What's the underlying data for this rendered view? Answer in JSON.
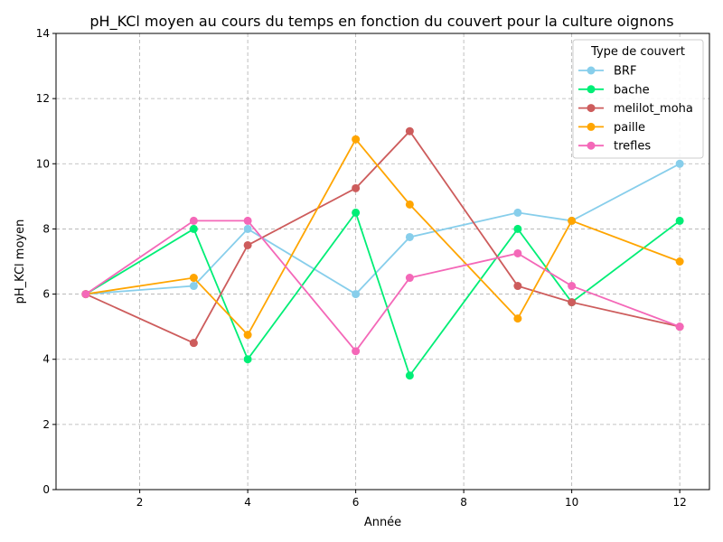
{
  "chart_data": {
    "type": "line",
    "title": "pH_KCl moyen au cours du temps en fonction du couvert pour la culture oignons",
    "xlabel": "Année",
    "ylabel": "pH_KCl moyen",
    "xlim": [
      0.45,
      12.55
    ],
    "ylim": [
      0,
      14
    ],
    "xticks": [
      2,
      4,
      6,
      8,
      10,
      12
    ],
    "yticks": [
      0,
      2,
      4,
      6,
      8,
      10,
      12,
      14
    ],
    "grid": true,
    "legend_title": "Type de couvert",
    "legend_position": "top-right",
    "series": [
      {
        "name": "BRF",
        "color": "#87ceeb",
        "points": [
          [
            1,
            6.0
          ],
          [
            3,
            6.25
          ],
          [
            4,
            8.0
          ],
          [
            6,
            6.0
          ],
          [
            7,
            7.75
          ],
          [
            9,
            8.5
          ],
          [
            10,
            8.25
          ],
          [
            12,
            10.0
          ]
        ]
      },
      {
        "name": "bache",
        "color": "#00ee76",
        "points": [
          [
            1,
            6.0
          ],
          [
            3,
            8.0
          ],
          [
            4,
            4.0
          ],
          [
            6,
            8.5
          ],
          [
            7,
            3.5
          ],
          [
            9,
            8.0
          ],
          [
            10,
            5.75
          ],
          [
            12,
            8.25
          ]
        ]
      },
      {
        "name": "melilot_moha",
        "color": "#cd5c5c",
        "points": [
          [
            1,
            6.0
          ],
          [
            3,
            4.5
          ],
          [
            4,
            7.5
          ],
          [
            6,
            9.25
          ],
          [
            7,
            11.0
          ],
          [
            9,
            6.25
          ],
          [
            10,
            5.75
          ],
          [
            12,
            5.0
          ]
        ]
      },
      {
        "name": "paille",
        "color": "#ffa500",
        "points": [
          [
            1,
            6.0
          ],
          [
            3,
            6.5
          ],
          [
            4,
            4.75
          ],
          [
            6,
            10.75
          ],
          [
            7,
            8.75
          ],
          [
            9,
            5.25
          ],
          [
            10,
            8.25
          ],
          [
            12,
            7.0
          ]
        ]
      },
      {
        "name": "trefles",
        "color": "#f468b8",
        "points": [
          [
            1,
            6.0
          ],
          [
            3,
            8.25
          ],
          [
            4,
            8.25
          ],
          [
            6,
            4.25
          ],
          [
            7,
            6.5
          ],
          [
            9,
            7.25
          ],
          [
            10,
            6.25
          ],
          [
            12,
            5.0
          ]
        ]
      }
    ]
  }
}
